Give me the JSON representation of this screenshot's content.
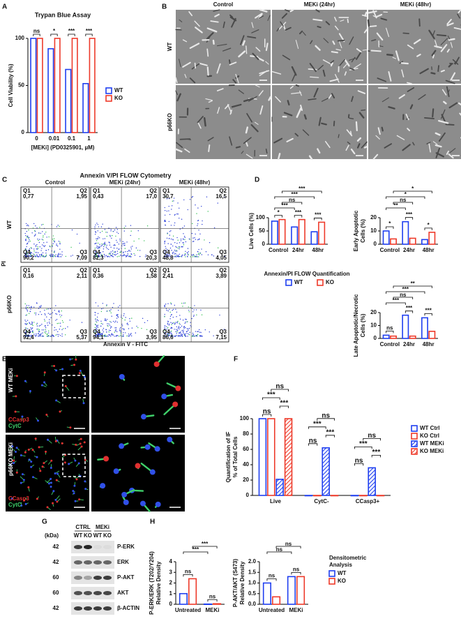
{
  "panel_labels": [
    "A",
    "B",
    "C",
    "D",
    "E",
    "F",
    "G",
    "H"
  ],
  "chart_data": [
    {
      "type": "bar",
      "title": "Trypan Blue Assay",
      "ylabel": [
        "Cell Viability (%)"
      ],
      "xlabel": "[MEKi] (PD0325901, µM)",
      "categories": [
        "0",
        "0.01",
        "0.1",
        "1"
      ],
      "series": [
        {
          "name": "WT",
          "color": "#1f3ff0",
          "values": [
            100,
            89,
            67,
            52
          ]
        },
        {
          "name": "KO",
          "color": "#ee3a2a",
          "values": [
            100,
            100,
            100,
            100
          ]
        }
      ],
      "ylim": [
        0,
        100
      ],
      "yticks": [
        0,
        50,
        100
      ],
      "legend": true,
      "significance": [
        [
          "ns"
        ],
        [
          "*"
        ],
        [
          "***"
        ],
        [
          "***"
        ]
      ]
    },
    {
      "type": "bar",
      "ylabel": [
        "Live Cells (%)"
      ],
      "categories": [
        "Control",
        "24hr",
        "48hr"
      ],
      "series": [
        {
          "name": "WT",
          "color": "#1f3ff0",
          "values": [
            87,
            65,
            47
          ]
        },
        {
          "name": "KO",
          "color": "#ee3a2a",
          "values": [
            93,
            93,
            83
          ]
        }
      ],
      "ylim": [
        0,
        100
      ],
      "yticks": [
        0,
        50,
        100
      ],
      "significance": [
        [
          "*"
        ],
        [
          "***"
        ],
        [
          "***"
        ]
      ],
      "brackets": [
        "***",
        "ns",
        "***",
        "***"
      ]
    },
    {
      "type": "bar",
      "ylabel": [
        "Early Apoptotic",
        "Cells (%)"
      ],
      "categories": [
        "Control",
        "24hr",
        "48hr"
      ],
      "series": [
        {
          "name": "WT",
          "color": "#1f3ff0",
          "values": [
            10,
            17,
            3.5
          ]
        },
        {
          "name": "KO",
          "color": "#ee3a2a",
          "values": [
            4,
            4.5,
            9
          ]
        }
      ],
      "ylim": [
        0,
        20
      ],
      "yticks": [
        0,
        10,
        20
      ],
      "significance": [
        [
          "*"
        ],
        [
          "***"
        ],
        [
          "*"
        ]
      ],
      "brackets": [
        "**",
        "ns",
        "*",
        "*"
      ]
    },
    {
      "type": "bar",
      "ylabel": [
        "Late Apoptotic/Necrotic",
        "Cells (%)"
      ],
      "categories": [
        "Control",
        "24hr",
        "48hr"
      ],
      "series": [
        {
          "name": "WT",
          "color": "#1f3ff0",
          "values": [
            2.5,
            18,
            16
          ]
        },
        {
          "name": "KO",
          "color": "#ee3a2a",
          "values": [
            1.8,
            1.8,
            5.5
          ]
        }
      ],
      "ylim": [
        0,
        20
      ],
      "yticks": [
        0,
        10,
        20
      ],
      "legend": true,
      "legend_title": [
        "Annexin/PI FLOW Quantification"
      ],
      "significance": [
        [
          "ns"
        ],
        [
          "***"
        ],
        [
          "***"
        ]
      ],
      "brackets": [
        "***",
        "ns",
        "***",
        "**"
      ]
    },
    {
      "type": "bar",
      "ylabel": [
        "Quantification of IF",
        "% of Total Cells"
      ],
      "categories": [
        "Live",
        "CytC-",
        "CCasp3+"
      ],
      "series": [
        {
          "name": "WT Ctrl",
          "color": "#1f3ff0",
          "values": [
            100,
            0,
            0
          ]
        },
        {
          "name": "KO Ctrl",
          "color": "#ee3a2a",
          "values": [
            100,
            0,
            0
          ]
        },
        {
          "name": "WT MEKi",
          "color": "#1f3ff0",
          "hatch": true,
          "values": [
            21,
            62,
            36
          ]
        },
        {
          "name": "KO MEKi",
          "color": "#ee3a2a",
          "hatch": true,
          "values": [
            100,
            0,
            0
          ]
        }
      ],
      "ylim": [
        0,
        100
      ],
      "yticks": [
        0,
        20,
        40,
        60,
        80,
        100
      ],
      "legend": true,
      "significance": [
        [
          "ns",
          "***",
          "***",
          "ns"
        ],
        [
          "ns",
          "***",
          "***",
          "ns"
        ],
        [
          "ns",
          "***",
          "***",
          "ns"
        ]
      ]
    },
    {
      "type": "bar",
      "ylabel": [
        "P-ERK/ERK (T202/Y204)",
        "Relative Density"
      ],
      "categories": [
        "Untreated",
        "MEKi"
      ],
      "series": [
        {
          "name": "WT",
          "color": "#1f3ff0",
          "values": [
            1,
            0.02
          ]
        },
        {
          "name": "KO",
          "color": "#ee3a2a",
          "values": [
            2.4,
            0.05
          ]
        }
      ],
      "ylim": [
        0,
        4
      ],
      "yticks": [
        0,
        1,
        2,
        3,
        4
      ],
      "significance": [
        [
          "ns"
        ],
        [
          "ns"
        ]
      ],
      "brackets": [
        "***",
        "***"
      ]
    },
    {
      "type": "bar",
      "ylabel": [
        "P-AKT/AKT (S473)",
        "Relative Density"
      ],
      "categories": [
        "Untreated",
        "MEKi"
      ],
      "series": [
        {
          "name": "WT",
          "color": "#1f3ff0",
          "values": [
            1.0,
            1.3
          ]
        },
        {
          "name": "KO",
          "color": "#ee3a2a",
          "values": [
            0.35,
            1.3
          ]
        }
      ],
      "ylim": [
        0,
        2
      ],
      "yticks": [
        {
          "value": 0,
          "label": "0.0"
        },
        0.5,
        {
          "value": 1,
          "label": "1.0"
        },
        1.5,
        {
          "value": 2,
          "label": "2.0"
        }
      ],
      "legend": true,
      "legend_title": [
        "Densitometric",
        "Analysis"
      ],
      "significance": [
        [
          "ns"
        ],
        [
          "ns"
        ]
      ],
      "brackets": [
        "ns",
        "ns"
      ]
    }
  ],
  "micrographs": {
    "columns": [
      "Control",
      "MEKi (24hr)",
      "MEKi (48hr)"
    ],
    "rows": [
      "WT",
      "p66KO"
    ]
  },
  "flow": {
    "title": "Annexin V/PI FLOW Cytometry",
    "columns": [
      "Control",
      "MEKi (24hr)",
      "MEKi (48hr)"
    ],
    "rows": [
      "WT",
      "p66KO"
    ],
    "xlabel": "Annexin V - FITC",
    "ylabel": "PI",
    "plots": [
      {
        "quadrants": [
          {
            "name": "Q1",
            "value": "0,77"
          },
          {
            "name": "Q2",
            "value": "1,95"
          },
          {
            "name": "Q3",
            "value": "7,09"
          },
          {
            "name": "Q4",
            "value": "90,2"
          }
        ]
      },
      {
        "quadrants": [
          {
            "name": "Q1",
            "value": "0,43"
          },
          {
            "name": "Q2",
            "value": "17,0"
          },
          {
            "name": "Q3",
            "value": "20,3"
          },
          {
            "name": "Q4",
            "value": "82,3"
          }
        ]
      },
      {
        "quadrants": [
          {
            "name": "Q1",
            "value": "30,7"
          },
          {
            "name": "Q2",
            "value": "16,5"
          },
          {
            "name": "Q3",
            "value": "4,05"
          },
          {
            "name": "Q4",
            "value": "48,8"
          }
        ]
      },
      {
        "quadrants": [
          {
            "name": "Q1",
            "value": "0,16"
          },
          {
            "name": "Q2",
            "value": "2,11"
          },
          {
            "name": "Q3",
            "value": "5,37"
          },
          {
            "name": "Q4",
            "value": "92,4"
          }
        ]
      },
      {
        "quadrants": [
          {
            "name": "Q1",
            "value": "0,36"
          },
          {
            "name": "Q2",
            "value": "1,58"
          },
          {
            "name": "Q3",
            "value": "3,95"
          },
          {
            "name": "Q4",
            "value": "94,1"
          }
        ]
      },
      {
        "quadrants": [
          {
            "name": "Q1",
            "value": "2,41"
          },
          {
            "name": "Q2",
            "value": "3,89"
          },
          {
            "name": "Q3",
            "value": "7,15"
          },
          {
            "name": "Q4",
            "value": "86,6"
          }
        ]
      }
    ]
  },
  "if_images": {
    "rows": [
      "WT MEKi",
      "p66KO MEKi"
    ],
    "stains": [
      "CCasp3",
      "CytC"
    ]
  },
  "blot": {
    "unit": "(kDa)",
    "groups": [
      "CTRL",
      "MEKi"
    ],
    "lanes": [
      "WT",
      "KO",
      "WT",
      "KO"
    ],
    "rows": [
      {
        "kda": 42,
        "protein": "P-ERK"
      },
      {
        "kda": 42,
        "protein": "ERK"
      },
      {
        "kda": 60,
        "protein": "P-AKT"
      },
      {
        "kda": 60,
        "protein": "AKT"
      },
      {
        "kda": 42,
        "protein": "β-ACTIN"
      }
    ]
  }
}
